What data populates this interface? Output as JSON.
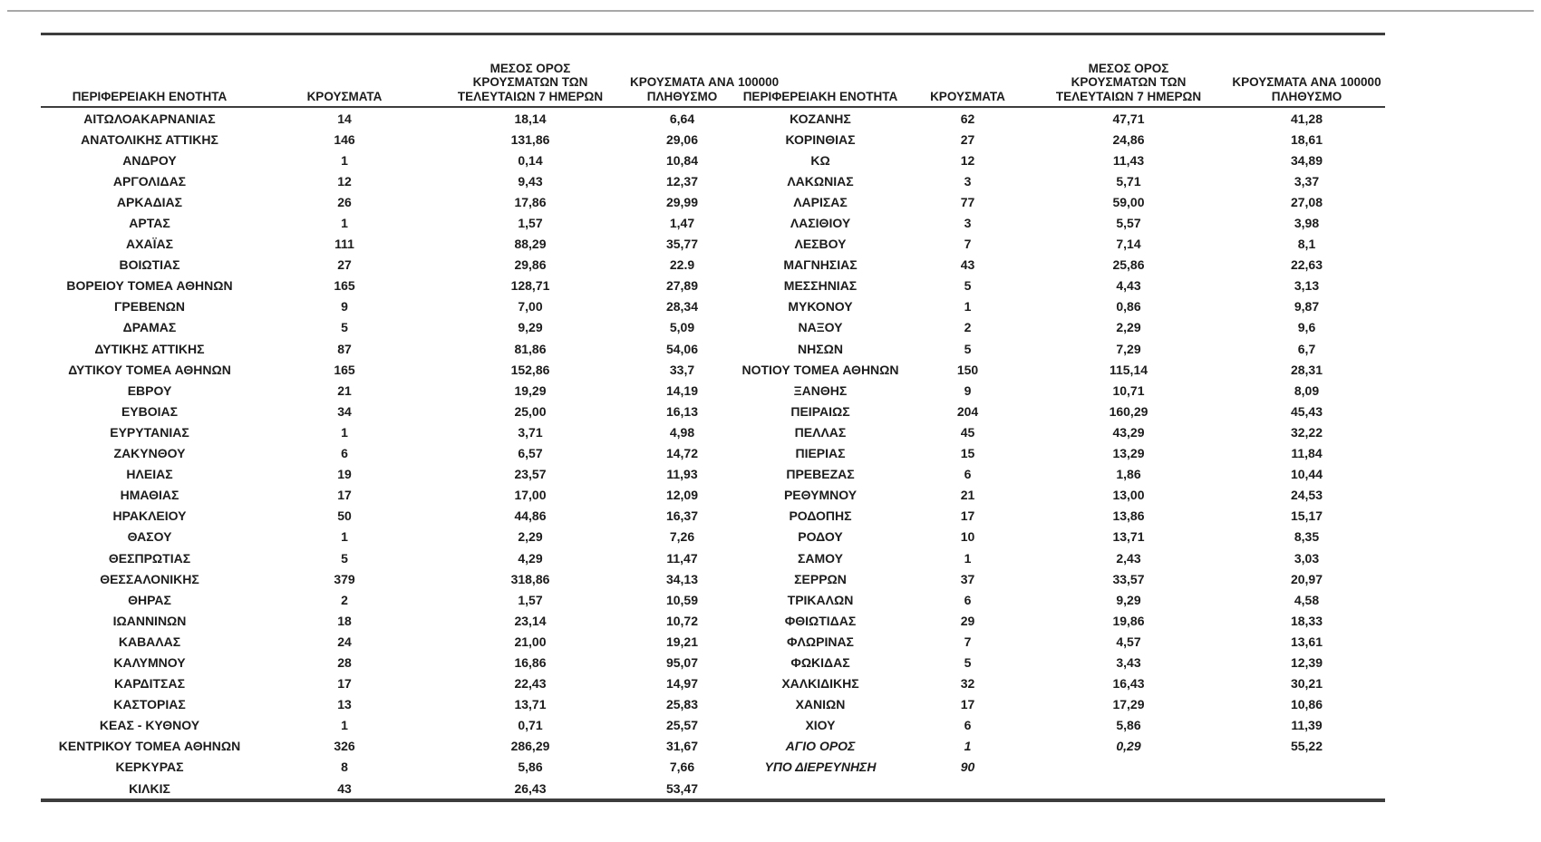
{
  "colors": {
    "text": "#1c1c1c",
    "border": "#3d3d3d",
    "top_rule": "#a8a8a8",
    "background": "#ffffff"
  },
  "table": {
    "columns": [
      {
        "key": "region",
        "label": "ΠΕΡΙΦΕΡΕΙΑΚΗ ΕΝΟΤΗΤΑ",
        "label_lines": [
          "ΠΕΡΙΦΕΡΕΙΑΚΗ ΕΝΟΤΗΤΑ"
        ]
      },
      {
        "key": "cases",
        "label": "ΚΡΟΥΣΜΑΤΑ",
        "label_lines": [
          "ΚΡΟΥΣΜΑΤΑ"
        ]
      },
      {
        "key": "avg7",
        "label": "ΜΕΣΟΣ ΟΡΟΣ ΚΡΟΥΣΜΑΤΩΝ ΤΩΝ ΤΕΛΕΥΤΑΙΩΝ 7 ΗΜΕΡΩΝ",
        "label_lines": [
          "ΜΕΣΟΣ ΟΡΟΣ",
          "ΚΡΟΥΣΜΑΤΩΝ ΤΩΝ",
          "ΤΕΛΕΥΤΑΙΩΝ 7 ΗΜΕΡΩΝ"
        ]
      },
      {
        "key": "per100k",
        "label": "ΚΡΟΥΣΜΑΤΑ ΑΝΑ 100000 ΠΛΗΘΥΣΜΟ",
        "label_lines": [
          "ΚΡΟΥΣΜΑΤΑ ΑΝΑ 100000",
          "ΠΛΗΘΥΣΜΟ"
        ]
      }
    ],
    "left_rows": [
      {
        "region": "ΑΙΤΩΛΟΑΚΑΡΝΑΝΙΑΣ",
        "cases": "14",
        "avg7": "18,14",
        "per100k": "6,64",
        "italic": false
      },
      {
        "region": "ΑΝΑΤΟΛΙΚΗΣ ΑΤΤΙΚΗΣ",
        "cases": "146",
        "avg7": "131,86",
        "per100k": "29,06",
        "italic": false
      },
      {
        "region": "ΑΝΔΡΟΥ",
        "cases": "1",
        "avg7": "0,14",
        "per100k": "10,84",
        "italic": false
      },
      {
        "region": "ΑΡΓΟΛΙΔΑΣ",
        "cases": "12",
        "avg7": "9,43",
        "per100k": "12,37",
        "italic": false
      },
      {
        "region": "ΑΡΚΑΔΙΑΣ",
        "cases": "26",
        "avg7": "17,86",
        "per100k": "29,99",
        "italic": false
      },
      {
        "region": "ΑΡΤΑΣ",
        "cases": "1",
        "avg7": "1,57",
        "per100k": "1,47",
        "italic": false
      },
      {
        "region": "ΑΧΑΪΑΣ",
        "cases": "111",
        "avg7": "88,29",
        "per100k": "35,77",
        "italic": false
      },
      {
        "region": "ΒΟΙΩΤΙΑΣ",
        "cases": "27",
        "avg7": "29,86",
        "per100k": "22.9",
        "italic": false
      },
      {
        "region": "ΒΟΡΕΙΟΥ ΤΟΜΕΑ ΑΘΗΝΩΝ",
        "cases": "165",
        "avg7": "128,71",
        "per100k": "27,89",
        "italic": false
      },
      {
        "region": "ΓΡΕΒΕΝΩΝ",
        "cases": "9",
        "avg7": "7,00",
        "per100k": "28,34",
        "italic": false
      },
      {
        "region": "ΔΡΑΜΑΣ",
        "cases": "5",
        "avg7": "9,29",
        "per100k": "5,09",
        "italic": false
      },
      {
        "region": "ΔΥΤΙΚΗΣ ΑΤΤΙΚΗΣ",
        "cases": "87",
        "avg7": "81,86",
        "per100k": "54,06",
        "italic": false
      },
      {
        "region": "ΔΥΤΙΚΟΥ ΤΟΜΕΑ ΑΘΗΝΩΝ",
        "cases": "165",
        "avg7": "152,86",
        "per100k": "33,7",
        "italic": false
      },
      {
        "region": "ΕΒΡΟΥ",
        "cases": "21",
        "avg7": "19,29",
        "per100k": "14,19",
        "italic": false
      },
      {
        "region": "ΕΥΒΟΙΑΣ",
        "cases": "34",
        "avg7": "25,00",
        "per100k": "16,13",
        "italic": false
      },
      {
        "region": "ΕΥΡΥΤΑΝΙΑΣ",
        "cases": "1",
        "avg7": "3,71",
        "per100k": "4,98",
        "italic": false
      },
      {
        "region": "ΖΑΚΥΝΘΟΥ",
        "cases": "6",
        "avg7": "6,57",
        "per100k": "14,72",
        "italic": false
      },
      {
        "region": "ΗΛΕΙΑΣ",
        "cases": "19",
        "avg7": "23,57",
        "per100k": "11,93",
        "italic": false
      },
      {
        "region": "ΗΜΑΘΙΑΣ",
        "cases": "17",
        "avg7": "17,00",
        "per100k": "12,09",
        "italic": false
      },
      {
        "region": "ΗΡΑΚΛΕΙΟΥ",
        "cases": "50",
        "avg7": "44,86",
        "per100k": "16,37",
        "italic": false
      },
      {
        "region": "ΘΑΣΟΥ",
        "cases": "1",
        "avg7": "2,29",
        "per100k": "7,26",
        "italic": false
      },
      {
        "region": "ΘΕΣΠΡΩΤΙΑΣ",
        "cases": "5",
        "avg7": "4,29",
        "per100k": "11,47",
        "italic": false
      },
      {
        "region": "ΘΕΣΣΑΛΟΝΙΚΗΣ",
        "cases": "379",
        "avg7": "318,86",
        "per100k": "34,13",
        "italic": false
      },
      {
        "region": "ΘΗΡΑΣ",
        "cases": "2",
        "avg7": "1,57",
        "per100k": "10,59",
        "italic": false
      },
      {
        "region": "ΙΩΑΝΝΙΝΩΝ",
        "cases": "18",
        "avg7": "23,14",
        "per100k": "10,72",
        "italic": false
      },
      {
        "region": "ΚΑΒΑΛΑΣ",
        "cases": "24",
        "avg7": "21,00",
        "per100k": "19,21",
        "italic": false
      },
      {
        "region": "ΚΑΛΥΜΝΟΥ",
        "cases": "28",
        "avg7": "16,86",
        "per100k": "95,07",
        "italic": false
      },
      {
        "region": "ΚΑΡΔΙΤΣΑΣ",
        "cases": "17",
        "avg7": "22,43",
        "per100k": "14,97",
        "italic": false
      },
      {
        "region": "ΚΑΣΤΟΡΙΑΣ",
        "cases": "13",
        "avg7": "13,71",
        "per100k": "25,83",
        "italic": false
      },
      {
        "region": "ΚΕΑΣ - ΚΥΘΝΟΥ",
        "cases": "1",
        "avg7": "0,71",
        "per100k": "25,57",
        "italic": false
      },
      {
        "region": "ΚΕΝΤΡΙΚΟΥ ΤΟΜΕΑ ΑΘΗΝΩΝ",
        "cases": "326",
        "avg7": "286,29",
        "per100k": "31,67",
        "italic": false
      },
      {
        "region": "ΚΕΡΚΥΡΑΣ",
        "cases": "8",
        "avg7": "5,86",
        "per100k": "7,66",
        "italic": false
      },
      {
        "region": "ΚΙΛΚΙΣ",
        "cases": "43",
        "avg7": "26,43",
        "per100k": "53,47",
        "italic": false
      }
    ],
    "right_rows": [
      {
        "region": "ΚΟΖΑΝΗΣ",
        "cases": "62",
        "avg7": "47,71",
        "per100k": "41,28",
        "italic": false
      },
      {
        "region": "ΚΟΡΙΝΘΙΑΣ",
        "cases": "27",
        "avg7": "24,86",
        "per100k": "18,61",
        "italic": false
      },
      {
        "region": "ΚΩ",
        "cases": "12",
        "avg7": "11,43",
        "per100k": "34,89",
        "italic": false
      },
      {
        "region": "ΛΑΚΩΝΙΑΣ",
        "cases": "3",
        "avg7": "5,71",
        "per100k": "3,37",
        "italic": false
      },
      {
        "region": "ΛΑΡΙΣΑΣ",
        "cases": "77",
        "avg7": "59,00",
        "per100k": "27,08",
        "italic": false
      },
      {
        "region": "ΛΑΣΙΘΙΟΥ",
        "cases": "3",
        "avg7": "5,57",
        "per100k": "3,98",
        "italic": false
      },
      {
        "region": "ΛΕΣΒΟΥ",
        "cases": "7",
        "avg7": "7,14",
        "per100k": "8,1",
        "italic": false
      },
      {
        "region": "ΜΑΓΝΗΣΙΑΣ",
        "cases": "43",
        "avg7": "25,86",
        "per100k": "22,63",
        "italic": false
      },
      {
        "region": "ΜΕΣΣΗΝΙΑΣ",
        "cases": "5",
        "avg7": "4,43",
        "per100k": "3,13",
        "italic": false
      },
      {
        "region": "ΜΥΚΟΝΟΥ",
        "cases": "1",
        "avg7": "0,86",
        "per100k": "9,87",
        "italic": false
      },
      {
        "region": "ΝΑΞΟΥ",
        "cases": "2",
        "avg7": "2,29",
        "per100k": "9,6",
        "italic": false
      },
      {
        "region": "ΝΗΣΩΝ",
        "cases": "5",
        "avg7": "7,29",
        "per100k": "6,7",
        "italic": false
      },
      {
        "region": "ΝΟΤΙΟΥ ΤΟΜΕΑ ΑΘΗΝΩΝ",
        "cases": "150",
        "avg7": "115,14",
        "per100k": "28,31",
        "italic": false
      },
      {
        "region": "ΞΑΝΘΗΣ",
        "cases": "9",
        "avg7": "10,71",
        "per100k": "8,09",
        "italic": false
      },
      {
        "region": "ΠΕΙΡΑΙΩΣ",
        "cases": "204",
        "avg7": "160,29",
        "per100k": "45,43",
        "italic": false
      },
      {
        "region": "ΠΕΛΛΑΣ",
        "cases": "45",
        "avg7": "43,29",
        "per100k": "32,22",
        "italic": false
      },
      {
        "region": "ΠΙΕΡΙΑΣ",
        "cases": "15",
        "avg7": "13,29",
        "per100k": "11,84",
        "italic": false
      },
      {
        "region": "ΠΡΕΒΕΖΑΣ",
        "cases": "6",
        "avg7": "1,86",
        "per100k": "10,44",
        "italic": false
      },
      {
        "region": "ΡΕΘΥΜΝΟΥ",
        "cases": "21",
        "avg7": "13,00",
        "per100k": "24,53",
        "italic": false
      },
      {
        "region": "ΡΟΔΟΠΗΣ",
        "cases": "17",
        "avg7": "13,86",
        "per100k": "15,17",
        "italic": false
      },
      {
        "region": "ΡΟΔΟΥ",
        "cases": "10",
        "avg7": "13,71",
        "per100k": "8,35",
        "italic": false
      },
      {
        "region": "ΣΑΜΟΥ",
        "cases": "1",
        "avg7": "2,43",
        "per100k": "3,03",
        "italic": false
      },
      {
        "region": "ΣΕΡΡΩΝ",
        "cases": "37",
        "avg7": "33,57",
        "per100k": "20,97",
        "italic": false
      },
      {
        "region": "ΤΡΙΚΑΛΩΝ",
        "cases": "6",
        "avg7": "9,29",
        "per100k": "4,58",
        "italic": false
      },
      {
        "region": "ΦΘΙΩΤΙΔΑΣ",
        "cases": "29",
        "avg7": "19,86",
        "per100k": "18,33",
        "italic": false
      },
      {
        "region": "ΦΛΩΡΙΝΑΣ",
        "cases": "7",
        "avg7": "4,57",
        "per100k": "13,61",
        "italic": false
      },
      {
        "region": "ΦΩΚΙΔΑΣ",
        "cases": "5",
        "avg7": "3,43",
        "per100k": "12,39",
        "italic": false
      },
      {
        "region": "ΧΑΛΚΙΔΙΚΗΣ",
        "cases": "32",
        "avg7": "16,43",
        "per100k": "30,21",
        "italic": false
      },
      {
        "region": "ΧΑΝΙΩΝ",
        "cases": "17",
        "avg7": "17,29",
        "per100k": "10,86",
        "italic": false
      },
      {
        "region": "ΧΙΟΥ",
        "cases": "6",
        "avg7": "5,86",
        "per100k": "11,39",
        "italic": false
      },
      {
        "region": "ΑΓΙΟ ΟΡΟΣ",
        "cases": "1",
        "avg7": "0,29",
        "per100k": "55,22",
        "italic": true
      },
      {
        "region": "ΥΠΟ ΔΙΕΡΕΥΝΗΣΗ",
        "cases": "90",
        "avg7": "",
        "per100k": "",
        "italic": true
      }
    ]
  }
}
